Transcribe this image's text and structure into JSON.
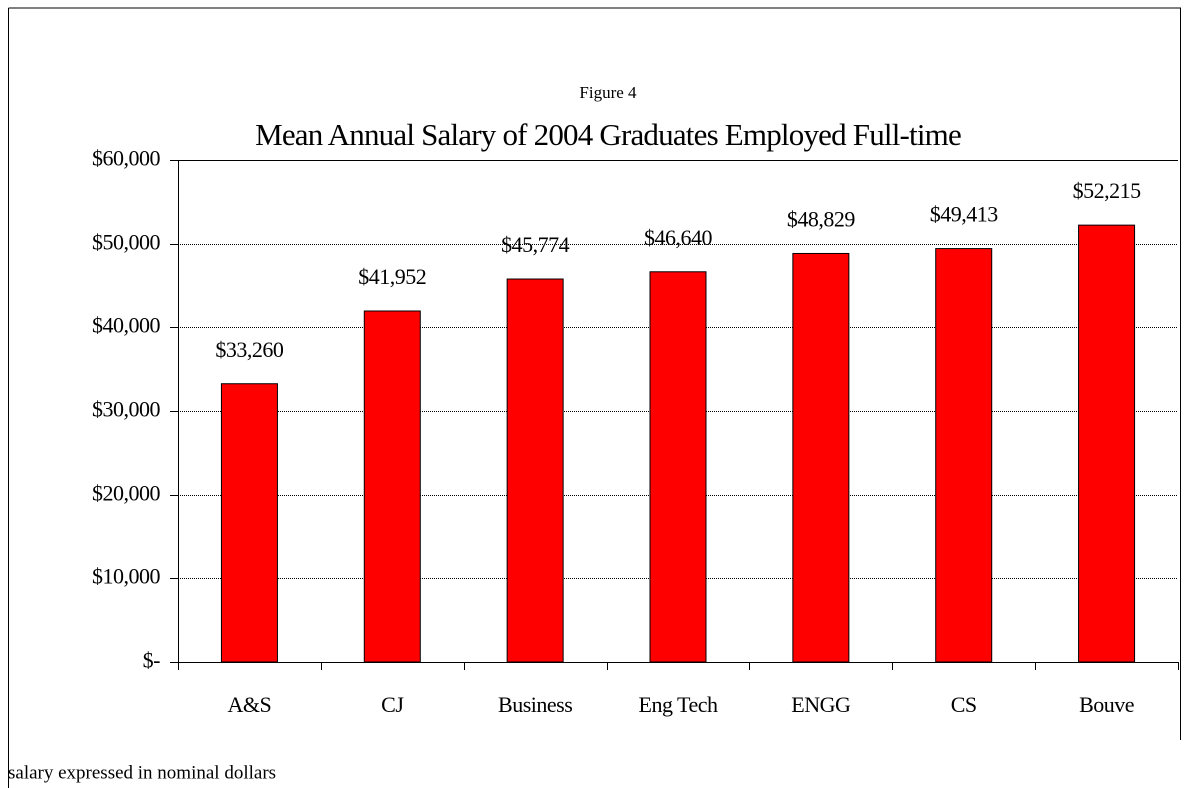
{
  "chart_data": {
    "type": "bar",
    "subtitle": "Figure 4",
    "title": "Mean Annual Salary of 2004 Graduates Employed Full-time",
    "categories": [
      "A&S",
      "CJ",
      "Business",
      "Eng Tech",
      "ENGG",
      "CS",
      "Bouve"
    ],
    "values": [
      33260,
      41952,
      45774,
      46640,
      48829,
      49413,
      52215
    ],
    "value_labels": [
      "$33,260",
      "$41,952",
      "$45,774",
      "$46,640",
      "$48,829",
      "$49,413",
      "$52,215"
    ],
    "color": "#ff0000",
    "ylim": [
      0,
      60000
    ],
    "yticks": [
      {
        "value": 0,
        "label": "$-"
      },
      {
        "value": 10000,
        "label": "$10,000"
      },
      {
        "value": 20000,
        "label": "$20,000"
      },
      {
        "value": 30000,
        "label": "$30,000"
      },
      {
        "value": 40000,
        "label": "$40,000"
      },
      {
        "value": 50000,
        "label": "$50,000"
      },
      {
        "value": 60000,
        "label": "$60,000"
      }
    ],
    "grid": true,
    "annotation": "salary expressed in nominal dollars"
  }
}
